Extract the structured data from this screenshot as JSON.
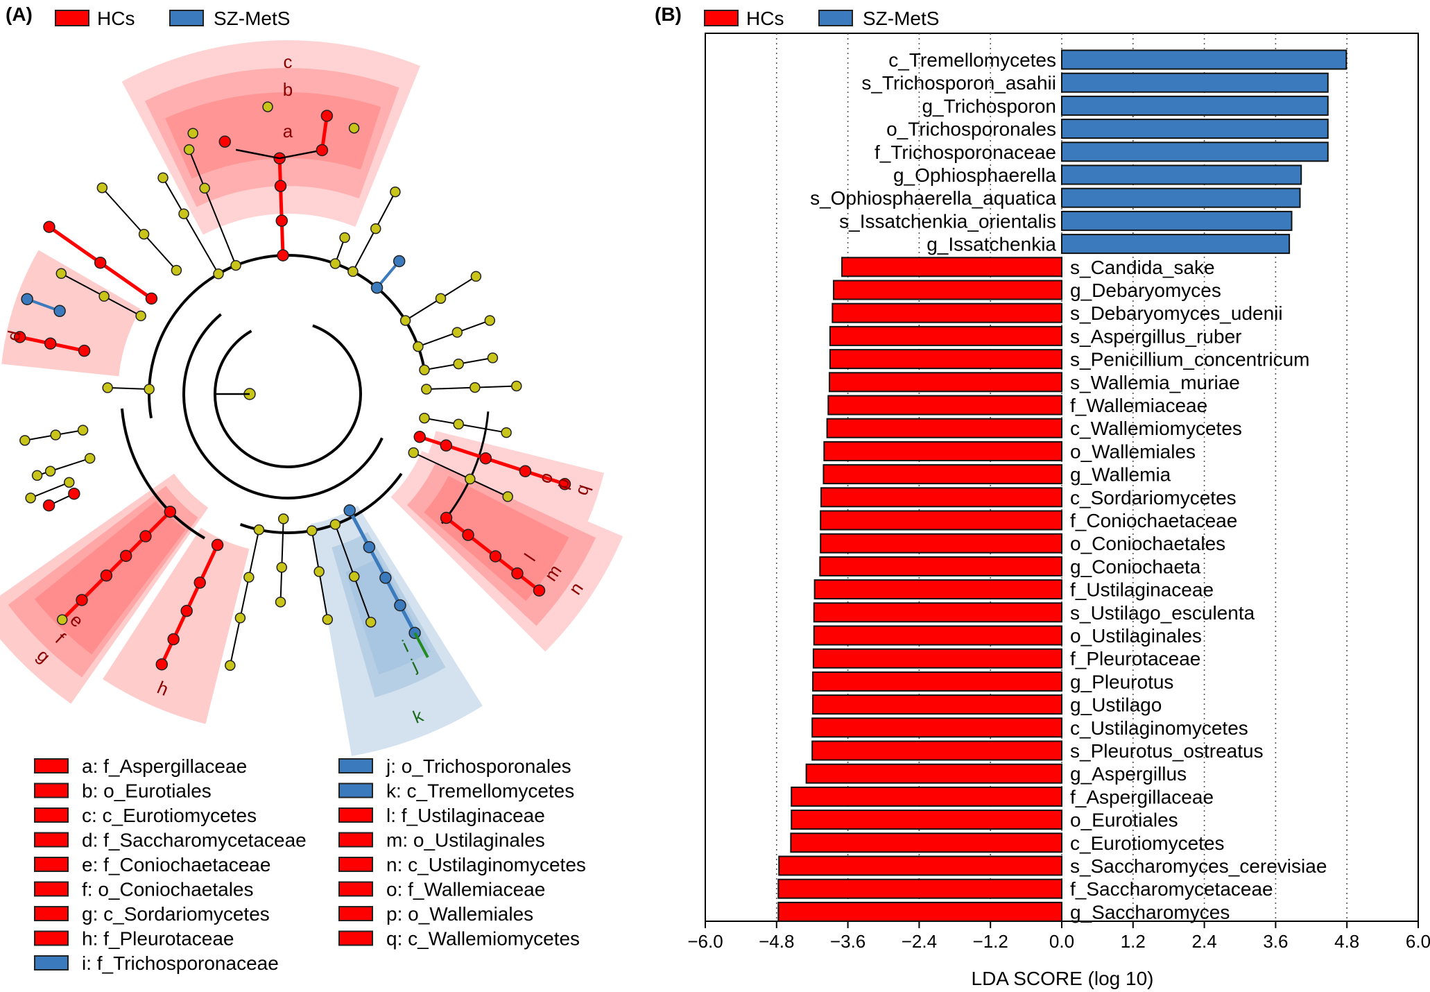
{
  "colors": {
    "hc": "#ff0000",
    "szmets": "#3a7abd",
    "hc_sector": "#ff6e6e",
    "szmets_sector": "#9fbfdd",
    "node_neutral": "#c8c41a",
    "highlight_branch": "#228b22"
  },
  "panel_a": {
    "label": "(A)",
    "legend": [
      {
        "name": "HCs",
        "color": "#ff0000"
      },
      {
        "name": "SZ-MetS",
        "color": "#3a7abd"
      }
    ],
    "clade_labels": [
      {
        "letter": "a",
        "color": "#ff0000"
      },
      {
        "letter": "b",
        "color": "#ff0000"
      },
      {
        "letter": "c",
        "color": "#ff0000"
      },
      {
        "letter": "d",
        "color": "#ff0000"
      },
      {
        "letter": "e",
        "color": "#ff0000"
      },
      {
        "letter": "f",
        "color": "#ff0000"
      },
      {
        "letter": "g",
        "color": "#ff0000"
      },
      {
        "letter": "h",
        "color": "#ff0000"
      },
      {
        "letter": "i",
        "color": "#3a7abd"
      },
      {
        "letter": "j",
        "color": "#3a7abd"
      },
      {
        "letter": "k",
        "color": "#3a7abd"
      },
      {
        "letter": "l",
        "color": "#ff0000"
      },
      {
        "letter": "m",
        "color": "#ff0000"
      },
      {
        "letter": "n",
        "color": "#ff0000"
      },
      {
        "letter": "o",
        "color": "#ff0000"
      },
      {
        "letter": "p",
        "color": "#ff0000"
      },
      {
        "letter": "q",
        "color": "#ff0000"
      }
    ],
    "key_left": [
      {
        "text": "a: f_Aspergillaceae",
        "color": "#ff0000"
      },
      {
        "text": "b: o_Eurotiales",
        "color": "#ff0000"
      },
      {
        "text": "c: c_Eurotiomycetes",
        "color": "#ff0000"
      },
      {
        "text": "d: f_Saccharomycetaceae",
        "color": "#ff0000"
      },
      {
        "text": "e: f_Coniochaetaceae",
        "color": "#ff0000"
      },
      {
        "text": "f: o_Coniochaetales",
        "color": "#ff0000"
      },
      {
        "text": "g: c_Sordariomycetes",
        "color": "#ff0000"
      },
      {
        "text": "h: f_Pleurotaceae",
        "color": "#ff0000"
      },
      {
        "text": "i: f_Trichosporonaceae",
        "color": "#3a7abd"
      }
    ],
    "key_right": [
      {
        "text": "j: o_Trichosporonales",
        "color": "#3a7abd"
      },
      {
        "text": "k: c_Tremellomycetes",
        "color": "#3a7abd"
      },
      {
        "text": "l: f_Ustilaginaceae",
        "color": "#ff0000"
      },
      {
        "text": "m: o_Ustilaginales",
        "color": "#ff0000"
      },
      {
        "text": "n: c_Ustilaginomycetes",
        "color": "#ff0000"
      },
      {
        "text": "o: f_Wallemiaceae",
        "color": "#ff0000"
      },
      {
        "text": "p: o_Wallemiales",
        "color": "#ff0000"
      },
      {
        "text": "q: c_Wallemiomycetes",
        "color": "#ff0000"
      }
    ]
  },
  "panel_b": {
    "label": "(B)",
    "legend": [
      {
        "name": "HCs",
        "color": "#ff0000"
      },
      {
        "name": "SZ-MetS",
        "color": "#3a7abd"
      }
    ]
  },
  "chart_data": {
    "type": "bar",
    "orientation": "horizontal",
    "title": "",
    "xlabel": "LDA SCORE (log 10)",
    "ylabel": "",
    "xlim": [
      -6.0,
      6.0
    ],
    "xticks": [
      -6.0,
      -4.8,
      -3.6,
      -2.4,
      -1.2,
      0.0,
      1.2,
      2.4,
      3.6,
      4.8,
      6.0
    ],
    "xtick_labels": [
      "−6.0",
      "−4.8",
      "−3.6",
      "−2.4",
      "−1.2",
      "0.0",
      "1.2",
      "2.4",
      "3.6",
      "4.8",
      "6.0"
    ],
    "grid": "vertical dotted",
    "legend_position": "top",
    "series_names": [
      "HCs",
      "SZ-MetS"
    ],
    "bars": [
      {
        "label": "c_Tremellomycetes",
        "value": 4.79,
        "group": "SZ-MetS"
      },
      {
        "label": "s_Trichosporon_asahii",
        "value": 4.48,
        "group": "SZ-MetS"
      },
      {
        "label": "g_Trichosporon",
        "value": 4.48,
        "group": "SZ-MetS"
      },
      {
        "label": "o_Trichosporonales",
        "value": 4.48,
        "group": "SZ-MetS"
      },
      {
        "label": "f_Trichosporonaceae",
        "value": 4.48,
        "group": "SZ-MetS"
      },
      {
        "label": "g_Ophiosphaerella",
        "value": 4.03,
        "group": "SZ-MetS"
      },
      {
        "label": "s_Ophiosphaerella_aquatica",
        "value": 4.01,
        "group": "SZ-MetS"
      },
      {
        "label": "s_Issatchenkia_orientalis",
        "value": 3.87,
        "group": "SZ-MetS"
      },
      {
        "label": "g_Issatchenkia",
        "value": 3.83,
        "group": "SZ-MetS"
      },
      {
        "label": "s_Candida_sake",
        "value": -3.7,
        "group": "HCs"
      },
      {
        "label": "g_Debaryomyces",
        "value": -3.84,
        "group": "HCs"
      },
      {
        "label": "s_Debaryomyces_udenii",
        "value": -3.86,
        "group": "HCs"
      },
      {
        "label": "s_Aspergillus_ruber",
        "value": -3.9,
        "group": "HCs"
      },
      {
        "label": "s_Penicillium_concentricum",
        "value": -3.9,
        "group": "HCs"
      },
      {
        "label": "s_Wallemia_muriae",
        "value": -3.91,
        "group": "HCs"
      },
      {
        "label": "f_Wallemiaceae",
        "value": -3.93,
        "group": "HCs"
      },
      {
        "label": "c_Wallemiomycetes",
        "value": -3.95,
        "group": "HCs"
      },
      {
        "label": "o_Wallemiales",
        "value": -4.0,
        "group": "HCs"
      },
      {
        "label": "g_Wallemia",
        "value": -4.01,
        "group": "HCs"
      },
      {
        "label": "c_Sordariomycetes",
        "value": -4.05,
        "group": "HCs"
      },
      {
        "label": "f_Coniochaetaceae",
        "value": -4.06,
        "group": "HCs"
      },
      {
        "label": "o_Coniochaetales",
        "value": -4.06,
        "group": "HCs"
      },
      {
        "label": "g_Coniochaeta",
        "value": -4.07,
        "group": "HCs"
      },
      {
        "label": "f_Ustilaginaceae",
        "value": -4.16,
        "group": "HCs"
      },
      {
        "label": "s_Ustilago_esculenta",
        "value": -4.17,
        "group": "HCs"
      },
      {
        "label": "o_Ustilaginales",
        "value": -4.17,
        "group": "HCs"
      },
      {
        "label": "f_Pleurotaceae",
        "value": -4.18,
        "group": "HCs"
      },
      {
        "label": "g_Pleurotus",
        "value": -4.19,
        "group": "HCs"
      },
      {
        "label": "g_Ustilago",
        "value": -4.19,
        "group": "HCs"
      },
      {
        "label": "c_Ustilaginomycetes",
        "value": -4.2,
        "group": "HCs"
      },
      {
        "label": "s_Pleurotus_ostreatus",
        "value": -4.2,
        "group": "HCs"
      },
      {
        "label": "g_Aspergillus",
        "value": -4.3,
        "group": "HCs"
      },
      {
        "label": "f_Aspergillaceae",
        "value": -4.55,
        "group": "HCs"
      },
      {
        "label": "o_Eurotiales",
        "value": -4.55,
        "group": "HCs"
      },
      {
        "label": "c_Eurotiomycetes",
        "value": -4.56,
        "group": "HCs"
      },
      {
        "label": "s_Saccharomyces_cerevisiae",
        "value": -4.76,
        "group": "HCs"
      },
      {
        "label": "f_Saccharomycetaceae",
        "value": -4.77,
        "group": "HCs"
      },
      {
        "label": "g_Saccharomyces",
        "value": -4.77,
        "group": "HCs"
      }
    ]
  }
}
